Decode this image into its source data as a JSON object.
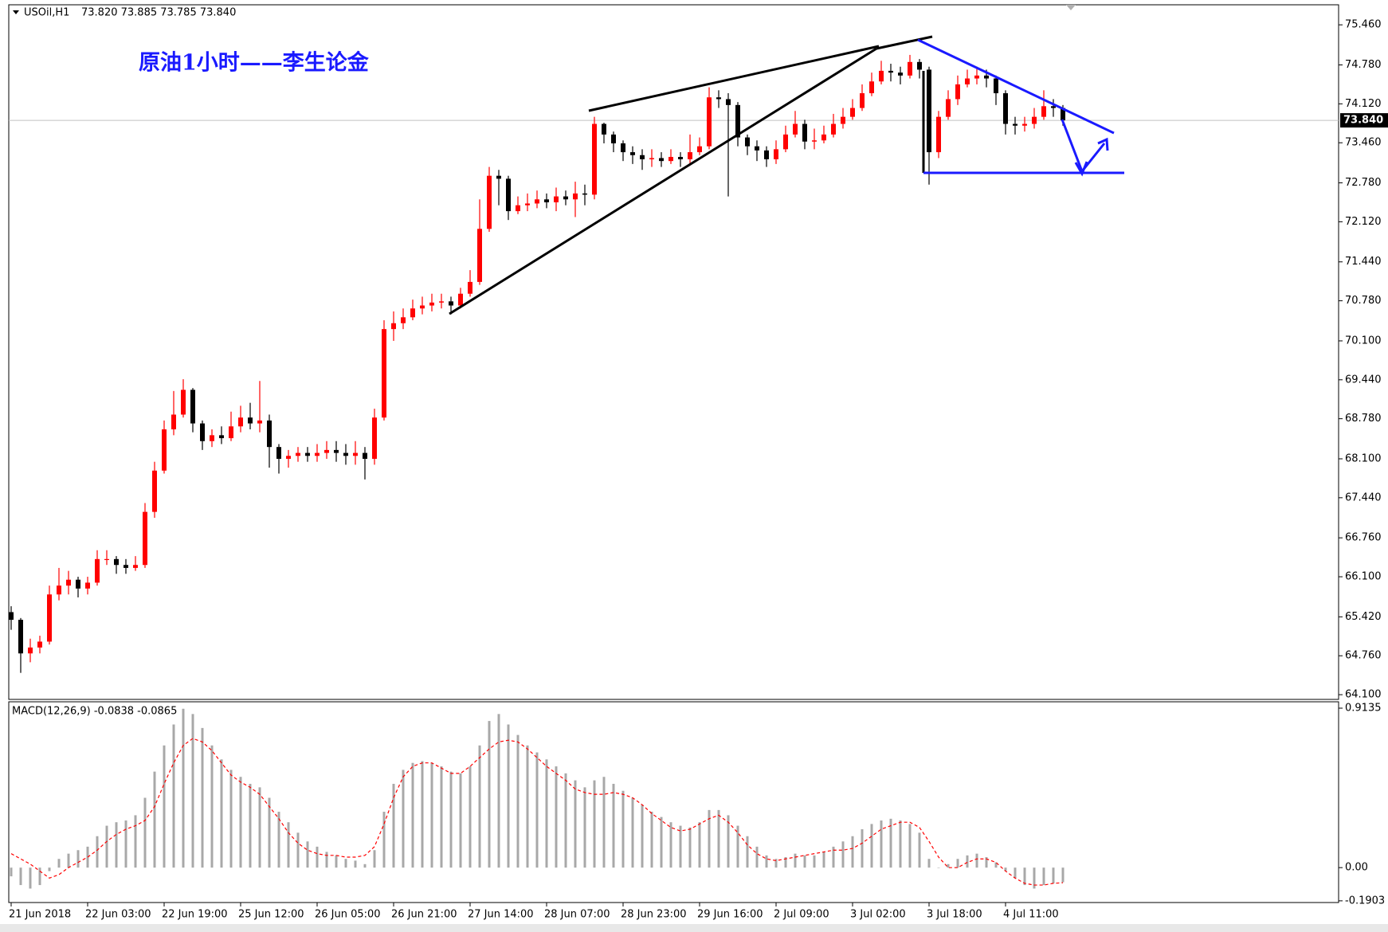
{
  "header": {
    "symbol": "USOil,H1",
    "ohlc": "73.820 73.885 73.785 73.840"
  },
  "chart_data": [
    {
      "type": "candlestick",
      "annotation": "原油1小时——李生论金",
      "categories": [
        "21 Jun 2018",
        null,
        null,
        null,
        null,
        null,
        null,
        null,
        "22 Jun 03:00",
        null,
        null,
        null,
        null,
        null,
        null,
        null,
        "22 Jun 19:00",
        null,
        null,
        null,
        null,
        null,
        null,
        null,
        "25 Jun 12:00",
        null,
        null,
        null,
        null,
        null,
        null,
        null,
        "26 Jun 05:00",
        null,
        null,
        null,
        null,
        null,
        null,
        null,
        "26 Jun 21:00",
        null,
        null,
        null,
        null,
        null,
        null,
        null,
        "27 Jun 14:00",
        null,
        null,
        null,
        null,
        null,
        null,
        null,
        "28 Jun 07:00",
        null,
        null,
        null,
        null,
        null,
        null,
        null,
        "28 Jun 23:00",
        null,
        null,
        null,
        null,
        null,
        null,
        null,
        "29 Jun 16:00",
        null,
        null,
        null,
        null,
        null,
        null,
        null,
        "2 Jul 09:00",
        null,
        null,
        null,
        null,
        null,
        null,
        null,
        "3 Jul 02:00",
        null,
        null,
        null,
        null,
        null,
        null,
        null,
        "3 Jul 18:00",
        null,
        null,
        null,
        null,
        null,
        null,
        null,
        "4 Jul 11:00",
        null,
        null,
        null,
        null,
        null,
        null
      ],
      "open": [
        65.5,
        65.37,
        64.8,
        64.9,
        65.0,
        65.8,
        65.95,
        66.05,
        65.9,
        66.0,
        66.4,
        66.4,
        66.3,
        66.25,
        66.3,
        67.2,
        67.9,
        68.6,
        68.85,
        69.27,
        68.7,
        68.4,
        68.5,
        68.45,
        68.65,
        68.8,
        68.7,
        68.75,
        68.3,
        68.1,
        68.15,
        68.2,
        68.15,
        68.2,
        68.25,
        68.2,
        68.15,
        68.2,
        68.1,
        68.8,
        70.3,
        70.4,
        70.5,
        70.65,
        70.7,
        70.75,
        70.77,
        70.7,
        70.9,
        71.1,
        72.0,
        72.9,
        72.85,
        72.3,
        72.4,
        72.43,
        72.5,
        72.45,
        72.55,
        72.5,
        72.6,
        72.58,
        73.78,
        73.6,
        73.45,
        73.3,
        73.25,
        73.18,
        73.2,
        73.15,
        73.22,
        73.18,
        73.3,
        73.4,
        74.23,
        74.2,
        74.1,
        73.55,
        73.4,
        73.33,
        73.18,
        73.35,
        73.6,
        73.78,
        73.48,
        73.5,
        73.6,
        73.78,
        73.9,
        74.05,
        74.3,
        74.5,
        74.68,
        74.65,
        74.6,
        74.83,
        74.7,
        73.3,
        73.9,
        74.2,
        74.45,
        74.55,
        74.6,
        74.55,
        74.3,
        73.78,
        73.75,
        73.78,
        73.9,
        74.08,
        74.05
      ],
      "high": [
        65.6,
        65.4,
        65.05,
        65.1,
        65.95,
        66.25,
        66.2,
        66.1,
        66.1,
        66.55,
        66.55,
        66.45,
        66.4,
        66.45,
        67.35,
        68.05,
        68.75,
        69.25,
        69.45,
        69.3,
        68.75,
        68.6,
        68.65,
        68.9,
        69.0,
        69.05,
        69.42,
        68.85,
        68.35,
        68.25,
        68.3,
        68.3,
        68.35,
        68.4,
        68.4,
        68.35,
        68.4,
        68.3,
        68.95,
        70.45,
        70.6,
        70.65,
        70.8,
        70.85,
        70.9,
        70.9,
        70.85,
        71.0,
        71.3,
        72.5,
        73.05,
        73.0,
        72.9,
        72.55,
        72.6,
        72.65,
        72.6,
        72.7,
        72.65,
        72.8,
        72.75,
        73.9,
        73.8,
        73.65,
        73.5,
        73.4,
        73.35,
        73.35,
        73.3,
        73.35,
        73.3,
        73.6,
        73.55,
        74.4,
        74.35,
        74.3,
        74.15,
        73.6,
        73.5,
        73.4,
        73.5,
        73.75,
        74.0,
        73.85,
        73.7,
        73.75,
        73.95,
        74.05,
        74.2,
        74.45,
        74.65,
        74.85,
        74.8,
        74.75,
        74.95,
        74.88,
        74.75,
        74.0,
        74.35,
        74.6,
        74.7,
        74.75,
        74.7,
        74.6,
        74.35,
        73.9,
        73.9,
        74.05,
        74.35,
        74.2,
        74.1
      ],
      "low": [
        65.2,
        64.47,
        64.65,
        64.8,
        64.95,
        65.7,
        65.8,
        65.75,
        65.8,
        65.95,
        66.3,
        66.15,
        66.15,
        66.2,
        66.25,
        67.1,
        67.85,
        68.5,
        68.8,
        68.55,
        68.25,
        68.3,
        68.35,
        68.4,
        68.55,
        68.6,
        68.55,
        67.95,
        67.85,
        67.95,
        68.05,
        68.05,
        68.05,
        68.1,
        68.05,
        68.0,
        68.0,
        67.75,
        68.0,
        68.75,
        70.1,
        70.3,
        70.45,
        70.55,
        70.6,
        70.65,
        70.55,
        70.65,
        70.85,
        71.05,
        71.95,
        72.4,
        72.15,
        72.25,
        72.3,
        72.35,
        72.35,
        72.3,
        72.4,
        72.2,
        72.4,
        72.5,
        73.45,
        73.3,
        73.15,
        73.1,
        73.0,
        73.05,
        73.05,
        73.1,
        73.05,
        73.1,
        73.25,
        73.35,
        74.05,
        72.55,
        73.4,
        73.25,
        73.15,
        73.05,
        73.1,
        73.3,
        73.55,
        73.35,
        73.35,
        73.45,
        73.55,
        73.7,
        73.85,
        74.0,
        74.25,
        74.45,
        74.5,
        74.45,
        74.55,
        74.55,
        72.75,
        73.2,
        73.85,
        74.1,
        74.4,
        74.45,
        74.4,
        74.1,
        73.6,
        73.6,
        73.65,
        73.7,
        73.85,
        73.9,
        73.75
      ],
      "close": [
        65.37,
        64.8,
        64.9,
        65.0,
        65.8,
        65.95,
        66.05,
        65.9,
        66.0,
        66.4,
        66.4,
        66.3,
        66.25,
        66.3,
        67.2,
        67.9,
        68.6,
        68.85,
        69.27,
        68.7,
        68.4,
        68.5,
        68.45,
        68.65,
        68.8,
        68.7,
        68.75,
        68.3,
        68.1,
        68.15,
        68.2,
        68.15,
        68.2,
        68.25,
        68.2,
        68.15,
        68.2,
        68.1,
        68.8,
        70.3,
        70.4,
        70.5,
        70.65,
        70.7,
        70.75,
        70.77,
        70.7,
        70.9,
        71.1,
        72.0,
        72.9,
        72.85,
        72.3,
        72.4,
        72.43,
        72.5,
        72.45,
        72.55,
        72.5,
        72.6,
        72.58,
        73.78,
        73.6,
        73.45,
        73.3,
        73.25,
        73.18,
        73.2,
        73.15,
        73.22,
        73.18,
        73.3,
        73.4,
        74.23,
        74.2,
        74.1,
        73.55,
        73.4,
        73.33,
        73.18,
        73.35,
        73.6,
        73.78,
        73.48,
        73.5,
        73.6,
        73.78,
        73.9,
        74.05,
        74.3,
        74.5,
        74.68,
        74.65,
        74.6,
        74.83,
        74.7,
        73.3,
        73.9,
        74.2,
        74.45,
        74.55,
        74.6,
        74.55,
        74.3,
        73.78,
        73.75,
        73.78,
        73.9,
        74.08,
        74.05,
        73.84
      ],
      "up_color": "#ff0000",
      "down_color": "#000000",
      "ylim": [
        64.02,
        75.8
      ],
      "yticks": [
        {
          "value": 75.46,
          "label": "75.460"
        },
        {
          "value": 74.78,
          "label": "74.780"
        },
        {
          "value": 74.12,
          "label": "74.120"
        },
        {
          "value": 73.46,
          "label": "73.460"
        },
        {
          "value": 72.78,
          "label": "72.780"
        },
        {
          "value": 72.12,
          "label": "72.120"
        },
        {
          "value": 71.44,
          "label": "71.440"
        },
        {
          "value": 70.78,
          "label": "70.780"
        },
        {
          "value": 70.1,
          "label": "70.100"
        },
        {
          "value": 69.44,
          "label": "69.440"
        },
        {
          "value": 68.78,
          "label": "68.780"
        },
        {
          "value": 68.1,
          "label": "68.100"
        },
        {
          "value": 67.44,
          "label": "67.440"
        },
        {
          "value": 66.76,
          "label": "66.760"
        },
        {
          "value": 66.1,
          "label": "66.100"
        },
        {
          "value": 65.42,
          "label": "65.420"
        },
        {
          "value": 64.76,
          "label": "64.760"
        },
        {
          "value": 64.1,
          "label": "64.100"
        }
      ],
      "current_price": {
        "value": 73.84,
        "label": "73.840"
      }
    },
    {
      "type": "macd",
      "label": "MACD(12,26,9) -0.0838 -0.0865",
      "histogram": {
        "color": "#a8a8a8",
        "values": [
          -0.05,
          -0.1,
          -0.12,
          -0.1,
          -0.02,
          0.05,
          0.08,
          0.1,
          0.12,
          0.18,
          0.24,
          0.26,
          0.27,
          0.3,
          0.4,
          0.55,
          0.7,
          0.82,
          0.91,
          0.88,
          0.8,
          0.7,
          0.62,
          0.56,
          0.52,
          0.48,
          0.46,
          0.4,
          0.32,
          0.26,
          0.2,
          0.15,
          0.12,
          0.09,
          0.07,
          0.05,
          0.04,
          0.02,
          0.1,
          0.32,
          0.48,
          0.56,
          0.6,
          0.61,
          0.6,
          0.58,
          0.55,
          0.54,
          0.58,
          0.7,
          0.84,
          0.88,
          0.82,
          0.76,
          0.7,
          0.66,
          0.62,
          0.58,
          0.54,
          0.5,
          0.46,
          0.5,
          0.52,
          0.48,
          0.44,
          0.4,
          0.36,
          0.32,
          0.29,
          0.26,
          0.24,
          0.23,
          0.26,
          0.33,
          0.33,
          0.3,
          0.24,
          0.18,
          0.12,
          0.07,
          0.05,
          0.06,
          0.08,
          0.07,
          0.07,
          0.09,
          0.12,
          0.15,
          0.18,
          0.22,
          0.25,
          0.27,
          0.28,
          0.27,
          0.25,
          0.2,
          0.05,
          0.0,
          0.02,
          0.05,
          0.07,
          0.08,
          0.06,
          0.03,
          -0.02,
          -0.06,
          -0.1,
          -0.12,
          -0.1,
          -0.09,
          -0.0838
        ]
      },
      "signal": {
        "color": "#ff0000",
        "values": [
          0.08,
          0.05,
          0.02,
          -0.02,
          -0.06,
          -0.04,
          0.0,
          0.03,
          0.06,
          0.1,
          0.15,
          0.19,
          0.22,
          0.24,
          0.27,
          0.35,
          0.48,
          0.6,
          0.7,
          0.74,
          0.72,
          0.67,
          0.6,
          0.53,
          0.49,
          0.46,
          0.42,
          0.35,
          0.28,
          0.2,
          0.14,
          0.1,
          0.08,
          0.07,
          0.07,
          0.06,
          0.06,
          0.07,
          0.12,
          0.25,
          0.4,
          0.52,
          0.58,
          0.6,
          0.6,
          0.57,
          0.54,
          0.54,
          0.58,
          0.63,
          0.68,
          0.72,
          0.73,
          0.72,
          0.68,
          0.63,
          0.58,
          0.54,
          0.5,
          0.45,
          0.43,
          0.42,
          0.42,
          0.43,
          0.42,
          0.4,
          0.36,
          0.31,
          0.27,
          0.23,
          0.21,
          0.22,
          0.25,
          0.28,
          0.3,
          0.26,
          0.2,
          0.13,
          0.08,
          0.05,
          0.04,
          0.05,
          0.06,
          0.07,
          0.08,
          0.09,
          0.1,
          0.1,
          0.11,
          0.14,
          0.18,
          0.22,
          0.24,
          0.26,
          0.26,
          0.23,
          0.15,
          0.06,
          0.0,
          0.0,
          0.03,
          0.05,
          0.05,
          0.03,
          -0.02,
          -0.06,
          -0.09,
          -0.1,
          -0.1,
          -0.09,
          -0.0865
        ]
      },
      "ylim": [
        -0.2,
        0.95
      ],
      "yticks": [
        {
          "value": 0.9135,
          "label": "0.9135"
        },
        {
          "value": 0,
          "label": "0.00"
        },
        {
          "value": -0.1903,
          "label": "-0.1903"
        }
      ]
    }
  ]
}
